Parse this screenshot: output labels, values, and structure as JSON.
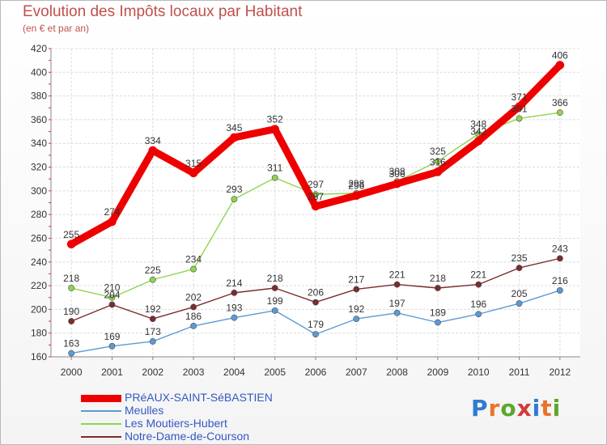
{
  "title": "Evolution des Impôts locaux par Habitant",
  "subtitle": "(en € et par an)",
  "logo": {
    "text": "Proxiti",
    "letter_colors": [
      "#2e7bd1",
      "#e8742b",
      "#5aa829",
      "#d23b3b",
      "#2e7bd1",
      "#e8742b",
      "#5aa829"
    ]
  },
  "chart_data": {
    "type": "line",
    "x": [
      "2000",
      "2001",
      "2002",
      "2003",
      "2004",
      "2005",
      "2006",
      "2007",
      "2008",
      "2009",
      "2010",
      "2011",
      "2012"
    ],
    "ylim": [
      160,
      420
    ],
    "yticks": [
      160,
      180,
      200,
      220,
      240,
      260,
      280,
      300,
      320,
      340,
      360,
      380,
      400,
      420
    ],
    "grid": true,
    "legend_position": "bottom-left",
    "series": [
      {
        "name": "PRéAUX-SAINT-SéBASTIEN",
        "color": "#ee0000",
        "values": [
          255,
          274,
          334,
          315,
          345,
          352,
          287,
          296,
          306,
          316,
          342,
          371,
          406
        ]
      },
      {
        "name": "Meulles",
        "color": "#5b9bd5",
        "values": [
          163,
          169,
          173,
          186,
          193,
          199,
          179,
          192,
          197,
          189,
          196,
          205,
          216
        ]
      },
      {
        "name": "Les Moutiers-Hubert",
        "color": "#8fd450",
        "values": [
          218,
          210,
          225,
          234,
          293,
          311,
          297,
          298,
          308,
          325,
          348,
          361,
          366
        ]
      },
      {
        "name": "Notre-Dame-de-Courson",
        "color": "#7b2c2c",
        "values": [
          190,
          204,
          192,
          202,
          214,
          218,
          206,
          217,
          221,
          218,
          221,
          235,
          243
        ]
      }
    ]
  }
}
